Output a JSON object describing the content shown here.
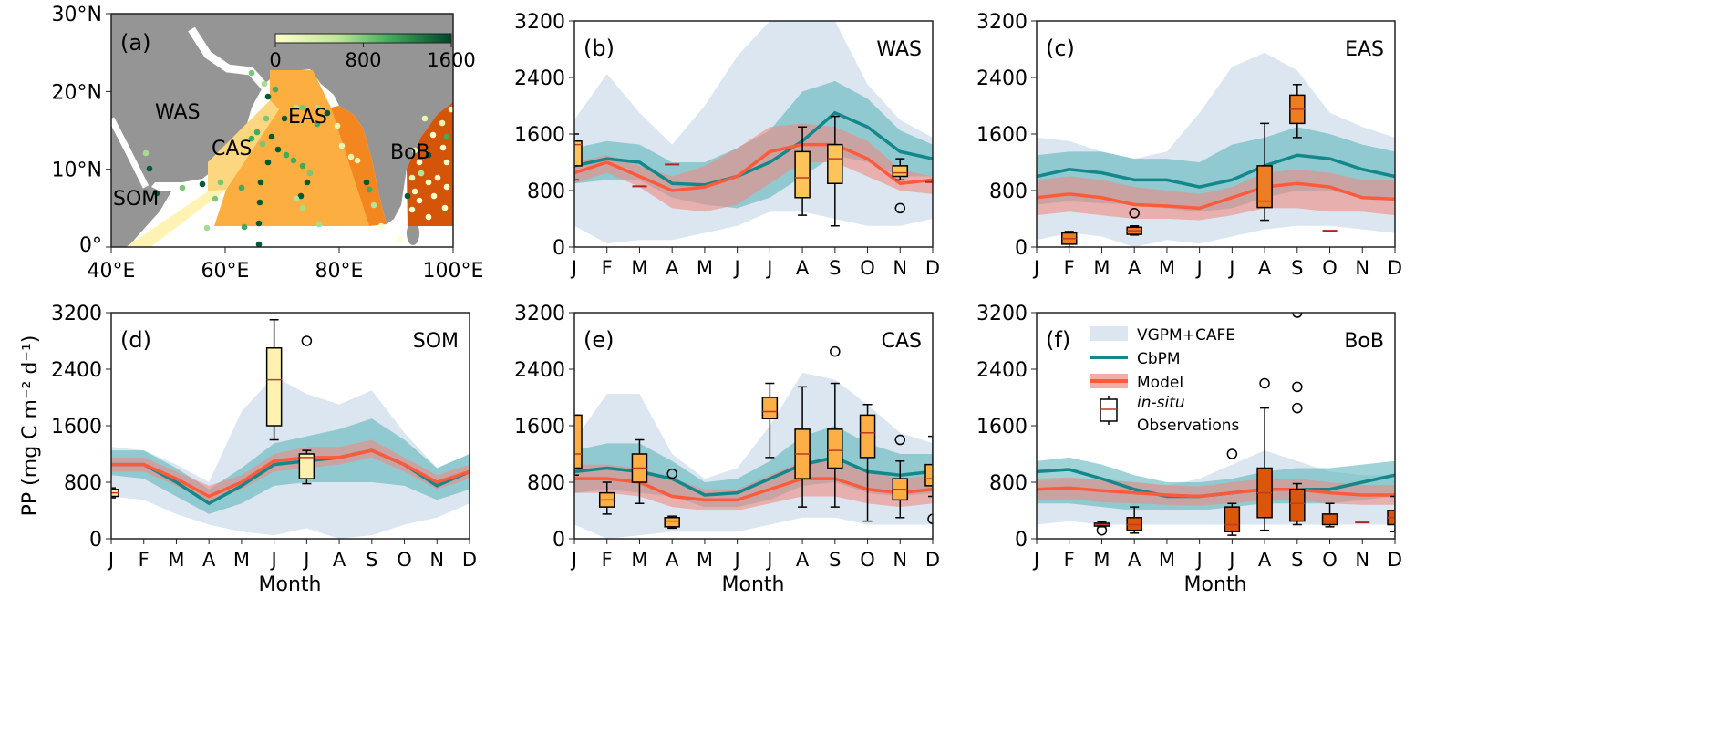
{
  "chart_data": {
    "type": "area",
    "ylabel": "PP (mg C m⁻² d⁻¹)",
    "xlabel": "Month",
    "months": [
      "J",
      "F",
      "M",
      "A",
      "M",
      "J",
      "J",
      "A",
      "S",
      "O",
      "N",
      "D"
    ],
    "y_ticks": [
      "0",
      "800",
      "1600",
      "2400",
      "3200"
    ],
    "ylim": [
      0,
      3200
    ],
    "colors": {
      "vgpm": "#dbe6f0",
      "cbpm": "#12888a",
      "cbpm_band": "#5fb6bd",
      "model": "#ff5a3c",
      "model_band": "#ee8a80"
    },
    "legend": {
      "placement": "panel-f-top-left",
      "vgpm": "VGPM+CAFE",
      "cbpm": "CbPM",
      "model": "Model",
      "insitu": "in-situ",
      "observations": "Observations"
    },
    "map": {
      "label": "(a)",
      "lat_ticks": [
        "0°",
        "10°N",
        "20°N",
        "30°N"
      ],
      "lon_ticks": [
        "40°E",
        "60°E",
        "80°E",
        "100°E"
      ],
      "colorbar_ticks": [
        "0",
        "800",
        "1600"
      ],
      "regions": [
        "WAS",
        "EAS",
        "CAS",
        "BoB",
        "SOM"
      ]
    },
    "panels": [
      {
        "id": "b",
        "label": "(b)",
        "region": "WAS",
        "box_color": "#fdc45a",
        "vgpm_lo": [
          300,
          50,
          100,
          100,
          200,
          300,
          500,
          500,
          400,
          300,
          300,
          400
        ],
        "vgpm_hi": [
          1800,
          2450,
          1900,
          1450,
          2000,
          2700,
          3200,
          3200,
          3200,
          2300,
          1800,
          1550
        ],
        "cbpm": [
          1150,
          1250,
          1200,
          900,
          880,
          1000,
          1200,
          1500,
          1900,
          1700,
          1350,
          1250
        ],
        "cbpm_lo": [
          900,
          950,
          950,
          700,
          600,
          550,
          700,
          1000,
          1300,
          1200,
          1000,
          1000
        ],
        "cbpm_hi": [
          1400,
          1500,
          1450,
          1200,
          1200,
          1400,
          1650,
          2200,
          2350,
          2100,
          1650,
          1450
        ],
        "model": [
          1050,
          1200,
          1000,
          800,
          850,
          1000,
          1350,
          1450,
          1450,
          1250,
          900,
          950
        ],
        "model_lo": [
          900,
          1050,
          850,
          550,
          500,
          600,
          900,
          1200,
          1200,
          1000,
          800,
          750
        ],
        "model_hi": [
          1200,
          1300,
          1150,
          1000,
          1150,
          1400,
          1700,
          1750,
          1700,
          1500,
          1100,
          1000
        ],
        "boxes": [
          {
            "m": 0,
            "wl": 950,
            "q1": 1150,
            "med": 1450,
            "q3": 1500,
            "wh": 1600,
            "out": []
          },
          {
            "m": 2,
            "wl": 860,
            "q1": 860,
            "med": 860,
            "q3": 860,
            "wh": 860,
            "out": []
          },
          {
            "m": 3,
            "wl": 1170,
            "q1": 1170,
            "med": 1170,
            "q3": 1170,
            "wh": 1170,
            "out": []
          },
          {
            "m": 7,
            "wl": 450,
            "q1": 700,
            "med": 980,
            "q3": 1350,
            "wh": 1700,
            "out": []
          },
          {
            "m": 8,
            "wl": 300,
            "q1": 900,
            "med": 1250,
            "q3": 1450,
            "wh": 1850,
            "out": []
          },
          {
            "m": 10,
            "wl": 950,
            "q1": 1000,
            "med": 1050,
            "q3": 1150,
            "wh": 1250,
            "out": [
              550
            ]
          },
          {
            "m": 11,
            "wl": 920,
            "q1": 920,
            "med": 920,
            "q3": 920,
            "wh": 920,
            "out": []
          }
        ]
      },
      {
        "id": "c",
        "label": "(c)",
        "region": "EAS",
        "box_color": "#ee7d22",
        "vgpm_lo": [
          100,
          200,
          150,
          0,
          100,
          50,
          150,
          250,
          300,
          300,
          250,
          200
        ],
        "vgpm_hi": [
          1550,
          1500,
          1350,
          1250,
          1350,
          1900,
          2550,
          2750,
          2500,
          1900,
          1700,
          1550
        ],
        "cbpm": [
          1000,
          1100,
          1050,
          950,
          950,
          850,
          950,
          1150,
          1300,
          1250,
          1100,
          1000
        ],
        "cbpm_lo": [
          600,
          650,
          620,
          600,
          550,
          500,
          550,
          700,
          800,
          800,
          700,
          650
        ],
        "cbpm_hi": [
          1300,
          1350,
          1350,
          1250,
          1250,
          1200,
          1450,
          1550,
          1700,
          1600,
          1450,
          1350
        ],
        "model": [
          700,
          750,
          700,
          600,
          580,
          550,
          700,
          850,
          900,
          850,
          700,
          680
        ],
        "model_lo": [
          450,
          500,
          450,
          400,
          400,
          380,
          450,
          550,
          550,
          500,
          500,
          450
        ],
        "model_hi": [
          950,
          1000,
          950,
          850,
          800,
          750,
          850,
          1050,
          1100,
          1050,
          950,
          950
        ],
        "boxes": [
          {
            "m": 1,
            "wl": 0,
            "q1": 40,
            "med": 120,
            "q3": 200,
            "wh": 220,
            "out": []
          },
          {
            "m": 3,
            "wl": 170,
            "q1": 180,
            "med": 230,
            "q3": 280,
            "wh": 300,
            "out": [
              480
            ]
          },
          {
            "m": 7,
            "wl": 380,
            "q1": 560,
            "med": 650,
            "q3": 1150,
            "wh": 1750,
            "out": []
          },
          {
            "m": 8,
            "wl": 1550,
            "q1": 1750,
            "med": 1950,
            "q3": 2150,
            "wh": 2300,
            "out": []
          },
          {
            "m": 9,
            "wl": 230,
            "q1": 230,
            "med": 230,
            "q3": 230,
            "wh": 230,
            "out": []
          }
        ]
      },
      {
        "id": "d",
        "label": "(d)",
        "region": "SOM",
        "box_color": "#fff2b0",
        "vgpm_lo": [
          600,
          550,
          350,
          200,
          100,
          50,
          150,
          0,
          50,
          200,
          300,
          500
        ],
        "vgpm_hi": [
          1300,
          1250,
          1050,
          800,
          1800,
          2300,
          2050,
          1900,
          2100,
          1500,
          1000,
          1200
        ],
        "cbpm": [
          1050,
          1050,
          800,
          500,
          750,
          1050,
          1100,
          1150,
          1250,
          1050,
          750,
          950
        ],
        "cbpm_lo": [
          900,
          850,
          600,
          350,
          500,
          750,
          800,
          800,
          800,
          750,
          550,
          700
        ],
        "cbpm_hi": [
          1250,
          1250,
          1000,
          700,
          1000,
          1350,
          1450,
          1550,
          1700,
          1400,
          1000,
          1200
        ],
        "model": [
          1050,
          1050,
          850,
          600,
          800,
          1100,
          1150,
          1150,
          1250,
          1050,
          800,
          950
        ],
        "model_lo": [
          950,
          950,
          750,
          500,
          700,
          950,
          1000,
          1050,
          1150,
          950,
          700,
          850
        ],
        "model_hi": [
          1150,
          1150,
          950,
          750,
          900,
          1200,
          1300,
          1300,
          1400,
          1150,
          900,
          1050
        ],
        "boxes": [
          {
            "m": 0,
            "wl": 580,
            "q1": 600,
            "med": 650,
            "q3": 700,
            "wh": 720,
            "out": []
          },
          {
            "m": 5,
            "wl": 1400,
            "q1": 1600,
            "med": 2250,
            "q3": 2700,
            "wh": 3100,
            "out": []
          },
          {
            "m": 6,
            "wl": 780,
            "q1": 850,
            "med": 1150,
            "q3": 1200,
            "wh": 1250,
            "out": [
              2800
            ]
          }
        ]
      },
      {
        "id": "e",
        "label": "(e)",
        "region": "CAS",
        "box_color": "#fdae45",
        "vgpm_lo": [
          200,
          0,
          50,
          100,
          100,
          100,
          200,
          300,
          300,
          200,
          200,
          200
        ],
        "vgpm_hi": [
          1400,
          2050,
          2050,
          1200,
          850,
          1000,
          1600,
          2350,
          2250,
          1900,
          1500,
          1350
        ],
        "cbpm": [
          950,
          1000,
          950,
          850,
          620,
          650,
          850,
          1050,
          1150,
          950,
          900,
          950
        ],
        "cbpm_lo": [
          650,
          700,
          650,
          600,
          450,
          450,
          550,
          750,
          800,
          650,
          600,
          650
        ],
        "cbpm_hi": [
          1250,
          1350,
          1350,
          1100,
          800,
          850,
          1100,
          1450,
          1600,
          1350,
          1200,
          1200
        ],
        "model": [
          850,
          850,
          800,
          600,
          550,
          550,
          700,
          850,
          850,
          700,
          650,
          700
        ],
        "model_lo": [
          650,
          650,
          600,
          450,
          400,
          400,
          500,
          600,
          600,
          500,
          450,
          500
        ],
        "model_hi": [
          1050,
          1050,
          1000,
          850,
          700,
          700,
          900,
          1100,
          1100,
          950,
          850,
          900
        ],
        "boxes": [
          {
            "m": 0,
            "wl": 900,
            "q1": 1000,
            "med": 1200,
            "q3": 1750,
            "wh": 1750,
            "out": []
          },
          {
            "m": 1,
            "wl": 350,
            "q1": 450,
            "med": 550,
            "q3": 650,
            "wh": 800,
            "out": []
          },
          {
            "m": 2,
            "wl": 500,
            "q1": 800,
            "med": 1000,
            "q3": 1200,
            "wh": 1400,
            "out": []
          },
          {
            "m": 3,
            "wl": 150,
            "q1": 170,
            "med": 250,
            "q3": 300,
            "wh": 320,
            "out": [
              920
            ]
          },
          {
            "m": 6,
            "wl": 1150,
            "q1": 1700,
            "med": 1800,
            "q3": 2000,
            "wh": 2200,
            "out": []
          },
          {
            "m": 7,
            "wl": 450,
            "q1": 850,
            "med": 1200,
            "q3": 1550,
            "wh": 2150,
            "out": []
          },
          {
            "m": 8,
            "wl": 450,
            "q1": 1000,
            "med": 1250,
            "q3": 1550,
            "wh": 2200,
            "out": [
              2650
            ]
          },
          {
            "m": 9,
            "wl": 250,
            "q1": 1150,
            "med": 1500,
            "q3": 1750,
            "wh": 1900,
            "out": []
          },
          {
            "m": 10,
            "wl": 300,
            "q1": 550,
            "med": 700,
            "q3": 850,
            "wh": 1100,
            "out": [
              1400
            ]
          },
          {
            "m": 11,
            "wl": 600,
            "q1": 750,
            "med": 850,
            "q3": 1050,
            "wh": 1450,
            "out": [
              280
            ]
          }
        ]
      },
      {
        "id": "f",
        "label": "(f)",
        "region": "BoB",
        "box_color": "#d9560b",
        "vgpm_lo": [
          200,
          250,
          200,
          200,
          200,
          200,
          200,
          200,
          200,
          200,
          200,
          200
        ],
        "vgpm_hi": [
          800,
          850,
          850,
          800,
          750,
          850,
          1050,
          1250,
          1100,
          950,
          900,
          900
        ],
        "cbpm": [
          950,
          980,
          850,
          700,
          600,
          600,
          650,
          700,
          700,
          700,
          800,
          900
        ],
        "cbpm_lo": [
          500,
          500,
          450,
          400,
          400,
          400,
          450,
          500,
          500,
          500,
          550,
          600
        ],
        "cbpm_hi": [
          1100,
          1150,
          1050,
          900,
          800,
          800,
          850,
          950,
          1000,
          1000,
          1050,
          1100
        ],
        "model": [
          700,
          720,
          680,
          650,
          620,
          600,
          650,
          700,
          700,
          650,
          620,
          620
        ],
        "model_lo": [
          550,
          560,
          520,
          500,
          480,
          470,
          500,
          550,
          550,
          500,
          480,
          480
        ],
        "model_hi": [
          850,
          870,
          830,
          800,
          760,
          740,
          800,
          850,
          850,
          800,
          760,
          760
        ],
        "boxes": [
          {
            "m": 2,
            "wl": 170,
            "q1": 180,
            "med": 200,
            "q3": 220,
            "wh": 240,
            "out": [
              120
            ]
          },
          {
            "m": 3,
            "wl": 80,
            "q1": 120,
            "med": 200,
            "q3": 300,
            "wh": 450,
            "out": []
          },
          {
            "m": 6,
            "wl": 50,
            "q1": 100,
            "med": 200,
            "q3": 450,
            "wh": 500,
            "out": [
              1200
            ]
          },
          {
            "m": 7,
            "wl": 120,
            "q1": 300,
            "med": 650,
            "q3": 1000,
            "wh": 1850,
            "out": [
              2200
            ]
          },
          {
            "m": 8,
            "wl": 200,
            "q1": 250,
            "med": 500,
            "q3": 700,
            "wh": 780,
            "out": [
              1850,
              2150,
              3200
            ]
          },
          {
            "m": 9,
            "wl": 170,
            "q1": 200,
            "med": 250,
            "q3": 350,
            "wh": 500,
            "out": []
          },
          {
            "m": 10,
            "wl": 230,
            "q1": 230,
            "med": 230,
            "q3": 230,
            "wh": 230,
            "out": []
          },
          {
            "m": 11,
            "wl": 100,
            "q1": 200,
            "med": 300,
            "q3": 400,
            "wh": 600,
            "out": []
          }
        ]
      }
    ]
  }
}
